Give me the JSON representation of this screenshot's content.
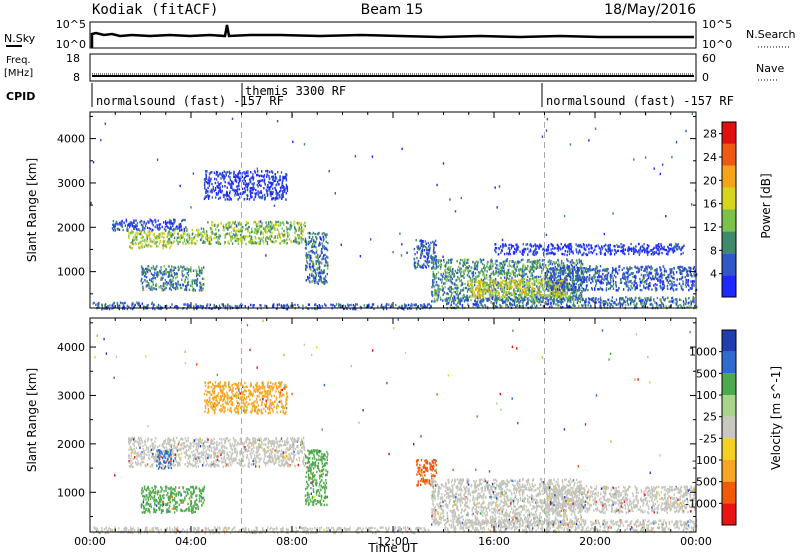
{
  "header": {
    "station": "Kodiak (fitACF)",
    "beam": "Beam 15",
    "date": "18/May/2016"
  },
  "strips": {
    "nsky": {
      "left_label": "N.Sky",
      "left_ticks": [
        "10^5",
        "10^0"
      ],
      "right_ticks": [
        "10^5",
        "10^0"
      ],
      "right_label": "N.Search"
    },
    "freq": {
      "left_label_line1": "Freq.",
      "left_label_line2": "[MHz]",
      "left_ticks": [
        "18",
        "8"
      ],
      "right_ticks": [
        "60",
        "0"
      ],
      "right_label": "Nave"
    },
    "cpid": {
      "label": "CPID",
      "segments": [
        {
          "name": "normalsound (fast) -157 RF",
          "start_h": 0.35,
          "end_h": 6.0
        },
        {
          "name": "themis 3300 RF",
          "start_h": 6.0,
          "end_h": 18.0
        },
        {
          "name": "normalsound (fast) -157 RF",
          "start_h": 18.0,
          "end_h": 24.0
        }
      ]
    }
  },
  "colors": {
    "power_scale": [
      "#1e28ff",
      "#2f58c8",
      "#3f8a6a",
      "#7ac24a",
      "#d7d41c",
      "#f2a516",
      "#f05a10",
      "#e01010"
    ],
    "velocity_scale": [
      "#ee1111",
      "#f25a0a",
      "#f5a623",
      "#f5d020",
      "#c8c8c0",
      "#a7d68a",
      "#4caa4c",
      "#2e6ad0",
      "#1f3fb0"
    ],
    "grey_data": "#c4c4bc"
  },
  "chart_data": [
    {
      "type": "heatmap",
      "panel": "power",
      "ylabel": "Slant Range [km]",
      "xlabel": "Time UT",
      "x_ticks": [
        "00:00",
        "04:00",
        "08:00",
        "12:00",
        "16:00",
        "20:00",
        "00:00"
      ],
      "x_range_hours": [
        0,
        24
      ],
      "y_ticks": [
        1000,
        2000,
        3000,
        4000
      ],
      "ylim": [
        180,
        4600
      ],
      "colorbar_label": "Power [dB]",
      "colorbar_ticks": [
        4,
        8,
        12,
        16,
        20,
        24,
        28
      ],
      "colorbar_range": [
        0,
        30
      ],
      "regions": [
        {
          "t0": 1.5,
          "t1": 3.2,
          "r0": 1550,
          "r1": 1950,
          "level": 16
        },
        {
          "t0": 3.0,
          "t1": 4.6,
          "r0": 1650,
          "r1": 2000,
          "level": 14
        },
        {
          "t0": 4.6,
          "t1": 8.5,
          "r0": 1650,
          "r1": 2150,
          "level": 14
        },
        {
          "t0": 2.0,
          "t1": 4.5,
          "r0": 600,
          "r1": 1150,
          "level": 9
        },
        {
          "t0": 0.8,
          "t1": 3.8,
          "r0": 1950,
          "r1": 2200,
          "level": 5
        },
        {
          "t0": 4.5,
          "t1": 7.8,
          "r0": 2650,
          "r1": 3300,
          "level": 3
        },
        {
          "t0": 8.5,
          "t1": 9.4,
          "r0": 750,
          "r1": 1900,
          "level": 8
        },
        {
          "t0": 12.8,
          "t1": 13.7,
          "r0": 1100,
          "r1": 1750,
          "level": 7
        },
        {
          "t0": 13.5,
          "t1": 19.5,
          "r0": 350,
          "r1": 1300,
          "level": 10
        },
        {
          "t0": 15.0,
          "t1": 19.0,
          "r0": 450,
          "r1": 850,
          "level": 18
        },
        {
          "t0": 18.0,
          "t1": 24.0,
          "r0": 600,
          "r1": 1150,
          "level": 6
        },
        {
          "t0": 14.0,
          "t1": 24.0,
          "r0": 200,
          "r1": 450,
          "level": 8
        },
        {
          "t0": 0.0,
          "t1": 2.5,
          "r0": 180,
          "r1": 330,
          "level": 6
        },
        {
          "t0": 2.5,
          "t1": 13.5,
          "r0": 180,
          "r1": 290,
          "level": 6
        },
        {
          "t0": 16.0,
          "t1": 23.5,
          "r0": 1400,
          "r1": 1650,
          "level": 3
        }
      ]
    },
    {
      "type": "heatmap",
      "panel": "velocity",
      "ylabel": "Slant Range [km]",
      "xlabel": "Time UT",
      "x_ticks": [
        "00:00",
        "04:00",
        "08:00",
        "12:00",
        "16:00",
        "20:00",
        "00:00"
      ],
      "x_range_hours": [
        0,
        24
      ],
      "y_ticks": [
        1000,
        2000,
        3000,
        4000
      ],
      "ylim": [
        180,
        4600
      ],
      "colorbar_label": "Velocity [m s^-1]",
      "colorbar_ticks": [
        "1000",
        "500",
        "100",
        "25",
        "-25",
        "-100",
        "-500",
        "-1000"
      ],
      "regions": [
        {
          "t0": 1.5,
          "t1": 8.5,
          "r0": 1550,
          "r1": 2150,
          "class": "ground"
        },
        {
          "t0": 2.0,
          "t1": 4.5,
          "r0": 600,
          "r1": 1150,
          "class": "pos_100"
        },
        {
          "t0": 2.6,
          "t1": 3.2,
          "r0": 1500,
          "r1": 1900,
          "class": "pos_500"
        },
        {
          "t0": 4.5,
          "t1": 7.8,
          "r0": 2650,
          "r1": 3300,
          "class": "neg_100"
        },
        {
          "t0": 8.5,
          "t1": 9.4,
          "r0": 750,
          "r1": 1900,
          "class": "pos_100"
        },
        {
          "t0": 12.9,
          "t1": 13.7,
          "r0": 1150,
          "r1": 1700,
          "class": "neg_500"
        },
        {
          "t0": 13.5,
          "t1": 19.5,
          "r0": 350,
          "r1": 1300,
          "class": "ground"
        },
        {
          "t0": 18.0,
          "t1": 24.0,
          "r0": 600,
          "r1": 1150,
          "class": "ground"
        },
        {
          "t0": 14.0,
          "t1": 24.0,
          "r0": 200,
          "r1": 450,
          "class": "ground"
        },
        {
          "t0": 0.0,
          "t1": 13.5,
          "r0": 180,
          "r1": 300,
          "class": "ground"
        }
      ]
    }
  ]
}
